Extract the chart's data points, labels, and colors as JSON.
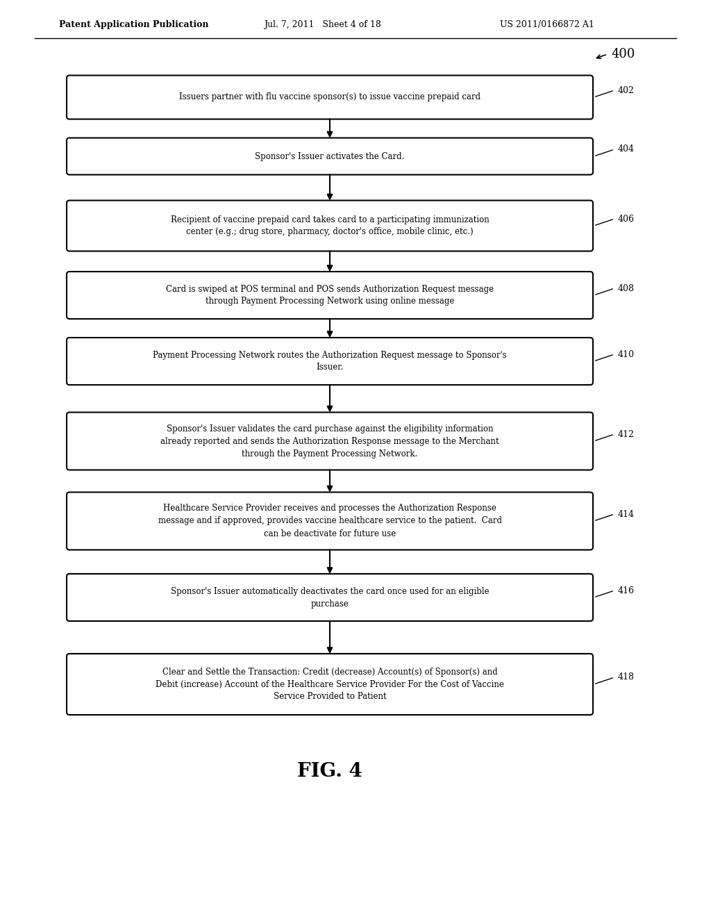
{
  "background_color": "#ffffff",
  "header_left": "Patent Application Publication",
  "header_mid": "Jul. 7, 2011   Sheet 4 of 18",
  "header_right": "US 2011/0166872 A1",
  "figure_label": "FIG. 4",
  "diagram_label": "400",
  "boxes": [
    {
      "id": 402,
      "label": "Issuers partner with flu vaccine sponsor(s) to issue vaccine prepaid card",
      "lines": [
        "Issuers partner with flu vaccine sponsor(s) to issue vaccine prepaid card"
      ]
    },
    {
      "id": 404,
      "label": "Sponsor's Issuer activates the Card.",
      "lines": [
        "Sponsor's Issuer activates the Card."
      ]
    },
    {
      "id": 406,
      "label": "Recipient of vaccine prepaid card takes card to a participating immunization center (e.g.; drug store, pharmacy, doctor's office, mobile clinic, etc.)",
      "lines": [
        "Recipient of vaccine prepaid card takes card to a participating immunization",
        "center (e.g.; drug store, pharmacy, doctor's office, mobile clinic, etc.)"
      ]
    },
    {
      "id": 408,
      "label": "Card is swiped at POS terminal and POS sends Authorization Request message through Payment Processing Network using online message",
      "lines": [
        "Card is swiped at POS terminal and POS sends Authorization Request message",
        "through Payment Processing Network using online message"
      ]
    },
    {
      "id": 410,
      "label": "Payment Processing Network routes the Authorization Request message to Sponsor's Issuer.",
      "lines": [
        "Payment Processing Network routes the Authorization Request message to Sponsor's",
        "Issuer."
      ]
    },
    {
      "id": 412,
      "label": "Sponsor's Issuer validates the card purchase against the eligibility information already reported and sends the Authorization Response message to the Merchant through the Payment Processing Network.",
      "lines": [
        "Sponsor's Issuer validates the card purchase against the eligibility information",
        "already reported and sends the Authorization Response message to the Merchant",
        "through the Payment Processing Network."
      ]
    },
    {
      "id": 414,
      "label": "Healthcare Service Provider receives and processes the Authorization Response message and if approved, provides vaccine healthcare service to the patient.  Card can be deactivate for future use",
      "lines": [
        "Healthcare Service Provider receives and processes the Authorization Response",
        "message and if approved, provides vaccine healthcare service to the patient.  Card",
        "can be deactivate for future use"
      ]
    },
    {
      "id": 416,
      "label": "Sponsor's Issuer automatically deactivates the card once used for an eligible purchase",
      "lines": [
        "Sponsor's Issuer automatically deactivates the card once used for an eligible",
        "purchase"
      ]
    },
    {
      "id": 418,
      "label": "Clear and Settle the Transaction: Credit (decrease) Account(s) of Sponsor(s) and Debit (increase) Account of the Healthcare Service Provider For the Cost of Vaccine Service Provided to Patient",
      "lines": [
        "Clear and Settle the Transaction: Credit (decrease) Account(s) of Sponsor(s) and",
        "Debit (increase) Account of the Healthcare Service Provider For the Cost of Vaccine",
        "Service Provided to Patient"
      ]
    }
  ]
}
